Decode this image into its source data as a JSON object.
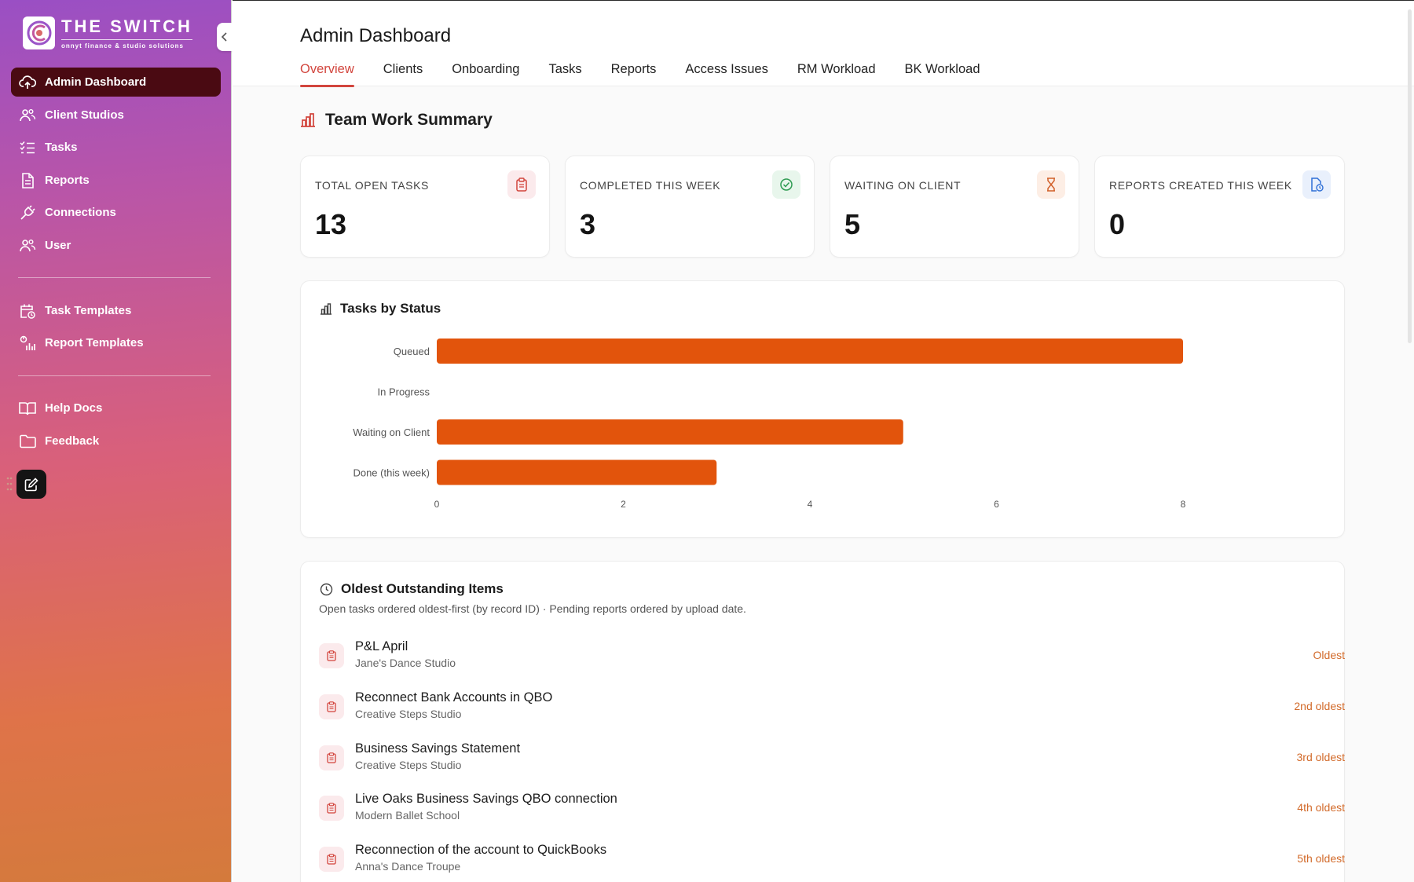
{
  "brand": {
    "title": "THE SWITCH",
    "subtitle": "onnyt finance & studio solutions"
  },
  "sidebar": {
    "items": [
      {
        "label": "Admin Dashboard",
        "icon": "cloud-upload-icon"
      },
      {
        "label": "Client Studios",
        "icon": "users-icon"
      },
      {
        "label": "Tasks",
        "icon": "list-check-icon"
      },
      {
        "label": "Reports",
        "icon": "file-text-icon"
      },
      {
        "label": "Connections",
        "icon": "plug-icon"
      },
      {
        "label": "User",
        "icon": "users-icon"
      }
    ],
    "templates": [
      {
        "label": "Task Templates",
        "icon": "calendar-clock-icon"
      },
      {
        "label": "Report Templates",
        "icon": "chart-report-icon"
      }
    ],
    "help": [
      {
        "label": "Help Docs",
        "icon": "book-icon"
      },
      {
        "label": "Feedback",
        "icon": "folder-icon"
      }
    ]
  },
  "header": {
    "title": "Admin Dashboard",
    "tabs": [
      "Overview",
      "Clients",
      "Onboarding",
      "Tasks",
      "Reports",
      "Access Issues",
      "RM Workload",
      "BK Workload"
    ],
    "active_tab": "Overview"
  },
  "summary": {
    "title": "Team Work Summary",
    "stats": [
      {
        "label": "TOTAL OPEN TASKS",
        "value": "13",
        "icon": "clipboard-icon",
        "color": "#d2453d",
        "bg": "#fbeaec"
      },
      {
        "label": "COMPLETED THIS WEEK",
        "value": "3",
        "icon": "check-circle-icon",
        "color": "#2e9b52",
        "bg": "#e8f6ec"
      },
      {
        "label": "WAITING ON CLIENT",
        "value": "5",
        "icon": "hourglass-icon",
        "color": "#d2602a",
        "bg": "#fdeee5"
      },
      {
        "label": "REPORTS CREATED THIS WEEK",
        "value": "0",
        "icon": "file-clock-icon",
        "color": "#2f6fd6",
        "bg": "#e9f0fc"
      }
    ]
  },
  "chart_card": {
    "title": "Tasks by Status"
  },
  "chart_data": {
    "type": "bar",
    "orientation": "horizontal",
    "categories": [
      "Queued",
      "In Progress",
      "Waiting on Client",
      "Done (this week)"
    ],
    "values": [
      8,
      0,
      5,
      3
    ],
    "xlim": [
      0,
      8
    ],
    "xticks": [
      "0",
      "2",
      "4",
      "6",
      "8"
    ],
    "bar_color": "#e2540c",
    "grid": false
  },
  "oldest": {
    "title": "Oldest Outstanding Items",
    "subtitle": "Open tasks ordered oldest-first (by record ID) · Pending reports ordered by upload date.",
    "items": [
      {
        "title": "P&L April",
        "studio": "Jane's Dance Studio",
        "badge": "Oldest"
      },
      {
        "title": "Reconnect Bank Accounts in QBO",
        "studio": "Creative Steps Studio",
        "badge": "2nd oldest"
      },
      {
        "title": "Business Savings Statement",
        "studio": "Creative Steps Studio",
        "badge": "3rd oldest"
      },
      {
        "title": "Live Oaks Business Savings QBO connection",
        "studio": "Modern Ballet School",
        "badge": "4th oldest"
      },
      {
        "title": "Reconnection of the account to QuickBooks",
        "studio": "Anna's Dance Troupe",
        "badge": "5th oldest"
      }
    ]
  }
}
